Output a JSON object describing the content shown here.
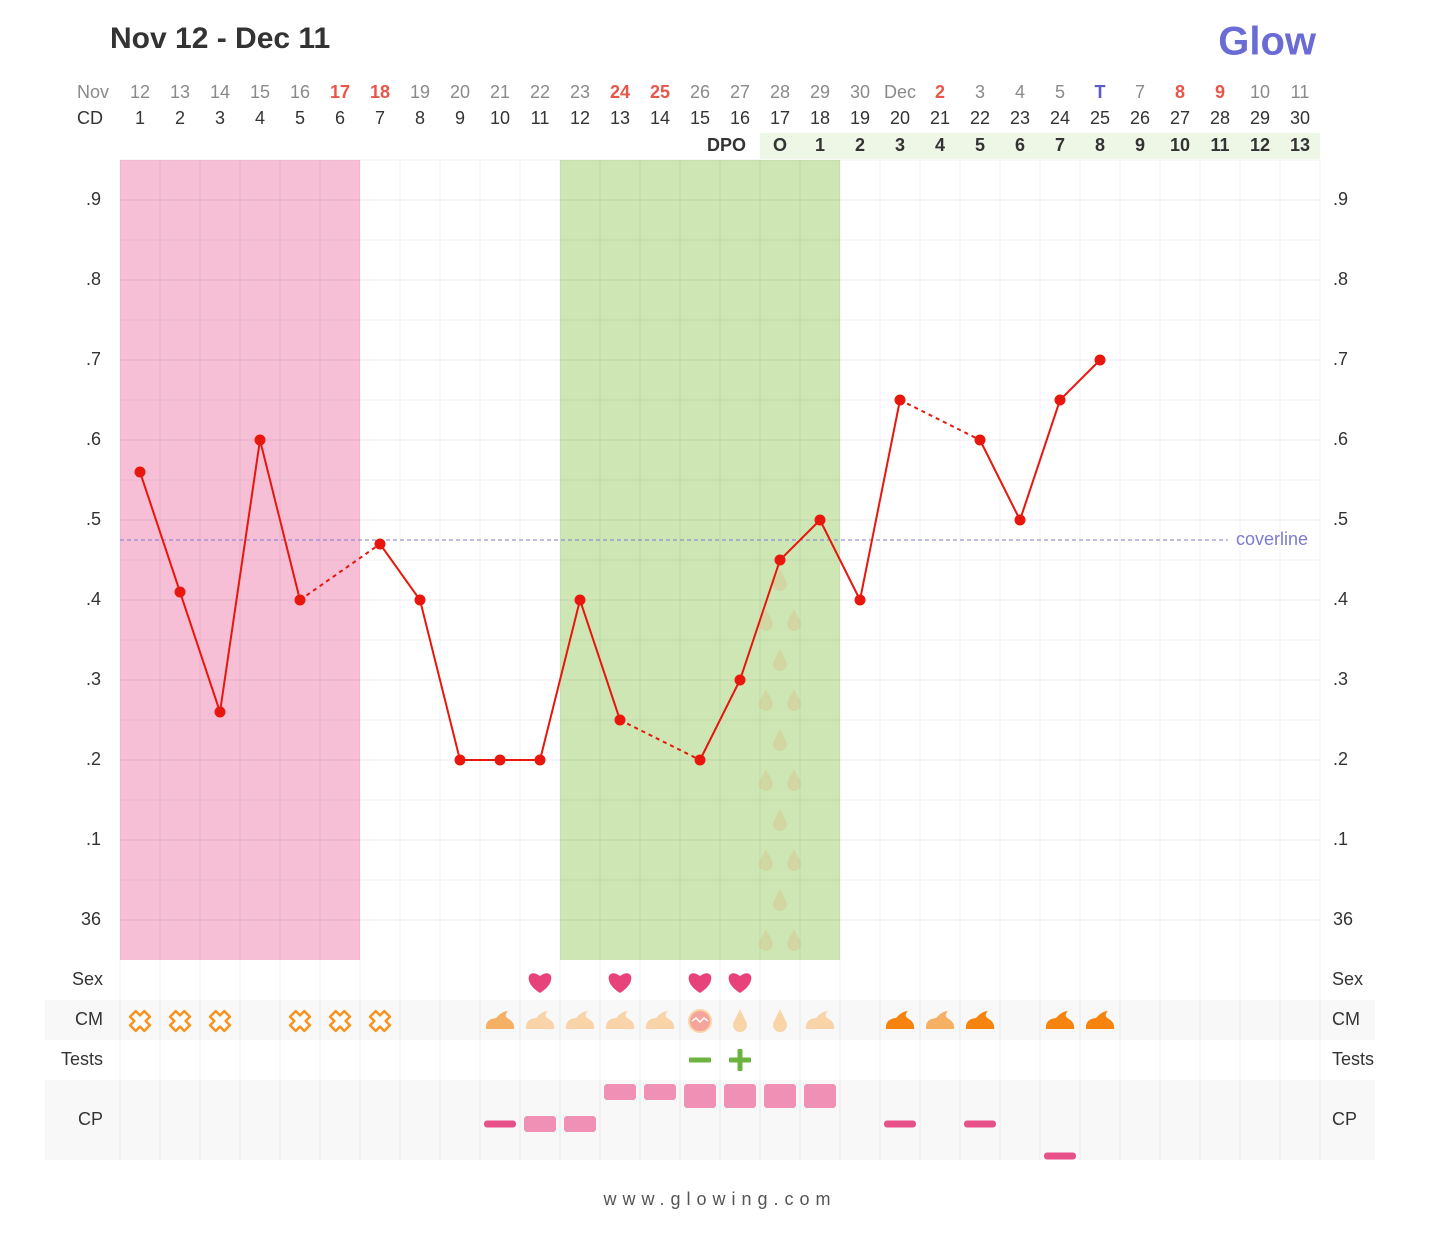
{
  "header": {
    "title": "Nov 12 - Dec 11",
    "logo": "Glow"
  },
  "footer": "www.glowing.com",
  "chart_data": {
    "type": "line",
    "month_label": "Nov",
    "cd_label": "CD",
    "dpo_label": "DPO",
    "categories": [
      "12",
      "13",
      "14",
      "15",
      "16",
      "17",
      "18",
      "19",
      "20",
      "21",
      "22",
      "23",
      "24",
      "25",
      "26",
      "27",
      "28",
      "29",
      "30",
      "Dec",
      "2",
      "3",
      "4",
      "5",
      "T",
      "7",
      "8",
      "9",
      "10",
      "11"
    ],
    "category_colors": [
      "#8a8a8a",
      "#8a8a8a",
      "#8a8a8a",
      "#8a8a8a",
      "#8a8a8a",
      "#e8564a",
      "#e8564a",
      "#8a8a8a",
      "#8a8a8a",
      "#8a8a8a",
      "#8a8a8a",
      "#8a8a8a",
      "#e8564a",
      "#e8564a",
      "#8a8a8a",
      "#8a8a8a",
      "#8a8a8a",
      "#8a8a8a",
      "#8a8a8a",
      "#8a8a8a",
      "#e8564a",
      "#8a8a8a",
      "#8a8a8a",
      "#8a8a8a",
      "#5b5bc4",
      "#8a8a8a",
      "#e8564a",
      "#e8564a",
      "#8a8a8a",
      "#8a8a8a"
    ],
    "cd": [
      1,
      2,
      3,
      4,
      5,
      6,
      7,
      8,
      9,
      10,
      11,
      12,
      13,
      14,
      15,
      16,
      17,
      18,
      19,
      20,
      21,
      22,
      23,
      24,
      25,
      26,
      27,
      28,
      29,
      30
    ],
    "dpo": [
      null,
      null,
      null,
      null,
      null,
      null,
      null,
      null,
      null,
      null,
      null,
      null,
      null,
      null,
      null,
      null,
      "O",
      1,
      2,
      3,
      4,
      5,
      6,
      7,
      8,
      9,
      10,
      11,
      12,
      13
    ],
    "values": [
      36.56,
      36.41,
      36.26,
      36.6,
      36.4,
      null,
      36.47,
      36.4,
      36.2,
      36.2,
      36.2,
      36.4,
      36.25,
      null,
      36.2,
      36.3,
      36.45,
      36.5,
      36.4,
      36.65,
      null,
      36.6,
      36.5,
      36.65,
      36.7,
      null,
      null,
      null,
      null,
      null
    ],
    "color": "#e8160c",
    "ylim": [
      35.95,
      36.95
    ],
    "yticks": [
      36,
      {
        "value": 36.1,
        "label": ".1"
      },
      {
        "value": 36.2,
        "label": ".2"
      },
      {
        "value": 36.3,
        "label": ".3"
      },
      {
        "value": 36.4,
        "label": ".4"
      },
      {
        "value": 36.5,
        "label": ".5"
      },
      {
        "value": 36.6,
        "label": ".6"
      },
      {
        "value": 36.7,
        "label": ".7"
      },
      {
        "value": 36.8,
        "label": ".8"
      },
      {
        "value": 36.9,
        "label": ".9"
      }
    ],
    "grid": true,
    "coverline": {
      "value": 36.475,
      "label": "coverline",
      "color": "#7b7bd0"
    },
    "period": {
      "from": 0,
      "to": 5,
      "color": "#f6bfd6"
    },
    "fertile_window": {
      "from": 11,
      "to": 17,
      "color": "#cde6b4"
    },
    "rows": {
      "sex": "Sex",
      "cm": "CM",
      "tests": "Tests",
      "cp": "CP"
    },
    "sex": [
      null,
      null,
      null,
      null,
      null,
      null,
      null,
      null,
      null,
      null,
      "heart",
      null,
      "heart",
      null,
      "heart",
      "heart",
      null,
      null,
      null,
      null,
      null,
      null,
      null,
      null,
      null,
      null,
      null,
      null,
      null,
      null
    ],
    "cm": [
      "dry",
      "dry",
      "dry",
      null,
      "dry",
      "dry",
      "dry",
      null,
      null,
      "sticky",
      "creamy",
      "creamy",
      "creamy",
      "creamy",
      "eggwhite",
      "watery",
      "watery",
      "creamy",
      null,
      "heavy",
      "sticky",
      "heavy",
      null,
      "heavy",
      "heavy",
      null,
      null,
      null,
      null,
      null
    ],
    "cm_colors": {
      "dry": "#f7931e",
      "sticky": "#f6b065",
      "creamy": "#f9d4a8",
      "eggwhite": "#f4a49b",
      "watery": "#f9d4a8",
      "heavy": "#f7830f"
    },
    "tests": [
      null,
      null,
      null,
      null,
      null,
      null,
      null,
      null,
      null,
      null,
      null,
      null,
      null,
      null,
      "negative",
      "positive",
      null,
      null,
      null,
      null,
      null,
      null,
      null,
      null,
      null,
      null,
      null,
      null,
      null,
      null
    ],
    "cp": [
      null,
      null,
      null,
      null,
      null,
      null,
      null,
      null,
      null,
      {
        "position": "medium",
        "shape": "dash"
      },
      {
        "position": "medium",
        "shape": "soft"
      },
      {
        "position": "medium",
        "shape": "soft"
      },
      {
        "position": "high",
        "shape": "soft"
      },
      {
        "position": "high",
        "shape": "soft"
      },
      {
        "position": "high",
        "shape": "large"
      },
      {
        "position": "high",
        "shape": "large"
      },
      {
        "position": "high",
        "shape": "large"
      },
      {
        "position": "high",
        "shape": "large"
      },
      null,
      {
        "position": "medium",
        "shape": "dash"
      },
      null,
      {
        "position": "medium",
        "shape": "dash"
      },
      null,
      {
        "position": "low",
        "shape": "dash"
      },
      null,
      null,
      null,
      null,
      null,
      null
    ]
  }
}
